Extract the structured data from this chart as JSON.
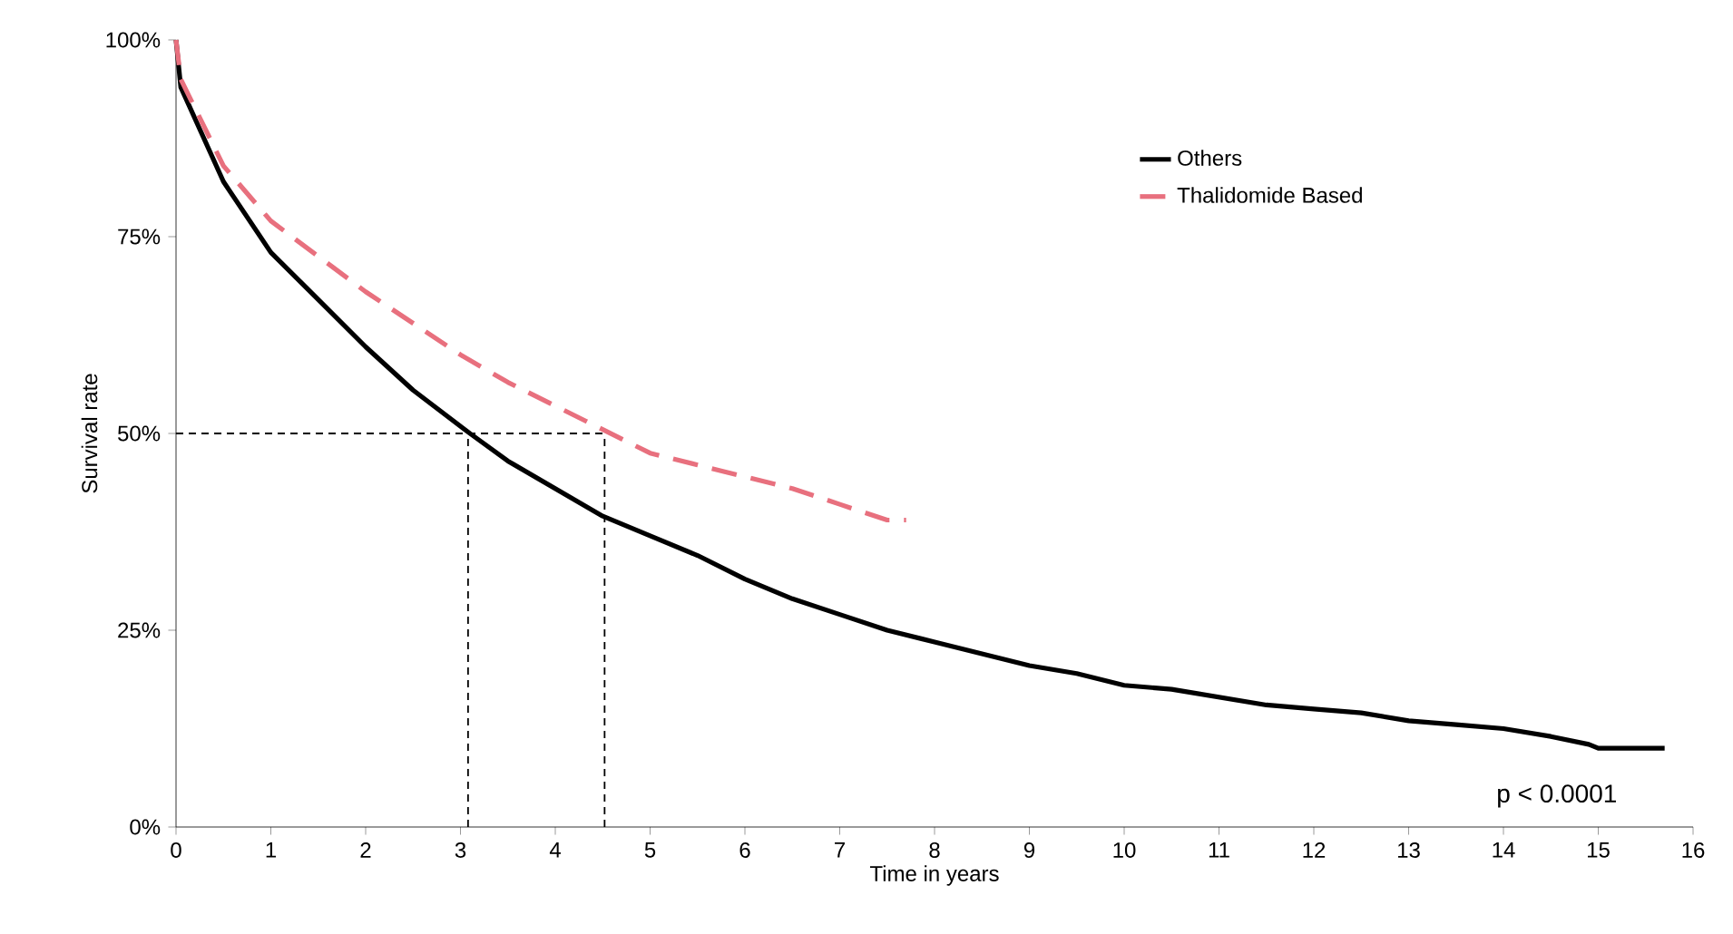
{
  "chart_data": {
    "type": "line",
    "xlabel": "Time in years",
    "ylabel": "Survival rate",
    "series": [
      {
        "name": "Others",
        "color": "#000000",
        "line_style": "solid",
        "x": [
          0,
          0.05,
          0.5,
          1,
          1.5,
          2,
          2.5,
          3.1,
          3.5,
          4,
          4.5,
          5,
          5.5,
          6,
          6.5,
          7,
          7.5,
          8,
          8.5,
          9,
          9.5,
          10,
          10.5,
          11,
          11.5,
          12,
          12.5,
          13,
          13.5,
          14,
          14.5,
          14.9,
          15,
          15.7
        ],
        "values": [
          100,
          94,
          82,
          73,
          67,
          61,
          55.5,
          50,
          46.5,
          43,
          39.5,
          37,
          34.5,
          31.5,
          29,
          27,
          25,
          23.5,
          22,
          20.5,
          19.5,
          18,
          17.5,
          16.5,
          15.5,
          15,
          14.5,
          13.5,
          13,
          12.5,
          11.5,
          10.5,
          10,
          10
        ]
      },
      {
        "name": "Thalidomide Based",
        "color": "#e8707e",
        "line_style": "dashed",
        "x": [
          0,
          0.05,
          0.5,
          1,
          1.5,
          2,
          2.5,
          3,
          3.5,
          4,
          4.5,
          5,
          5.5,
          6,
          6.5,
          7,
          7.5,
          7.7
        ],
        "values": [
          100,
          95,
          84,
          77,
          72.5,
          68,
          64,
          60,
          56.5,
          53.5,
          50.5,
          47.5,
          46,
          44.5,
          43,
          41,
          39,
          39
        ]
      }
    ],
    "xlim": [
      0,
      16
    ],
    "xticks": [
      0,
      1,
      2,
      3,
      4,
      5,
      6,
      7,
      8,
      9,
      10,
      11,
      12,
      13,
      14,
      15,
      16
    ],
    "ylim": [
      0,
      100
    ],
    "yticks": [
      {
        "value": 0,
        "label": "0%"
      },
      {
        "value": 25,
        "label": "25%"
      },
      {
        "value": 50,
        "label": "50%"
      },
      {
        "value": 75,
        "label": "75%"
      },
      {
        "value": 100,
        "label": "100%"
      }
    ],
    "ref_lines": [
      {
        "axis": "y",
        "value": 50,
        "line_style": "dashed",
        "color": "#000000"
      },
      {
        "axis": "x",
        "value": 3.08,
        "line_style": "dashed",
        "color": "#000000"
      },
      {
        "axis": "x",
        "value": 4.52,
        "line_style": "dashed",
        "color": "#000000"
      }
    ],
    "annotations": [
      "p < 0.0001"
    ],
    "legend": "right",
    "grid": false,
    "marker": "none"
  }
}
